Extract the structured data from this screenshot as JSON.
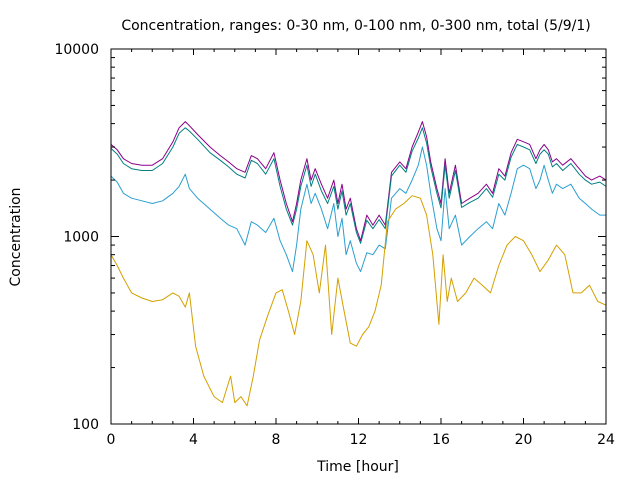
{
  "chart_data": {
    "type": "line",
    "title": "Concentration, ranges: 0-30 nm, 0-100 nm, 0-300 nm, total (5/9/1)",
    "xlabel": "Time [hour]",
    "ylabel": "Concentration",
    "xlim": [
      0,
      24
    ],
    "ylim": [
      100,
      10000
    ],
    "yscale": "log",
    "grid": false,
    "x_ticks": [
      0,
      4,
      8,
      12,
      16,
      20,
      24
    ],
    "x_tick_labels": [
      "0",
      "4",
      "8",
      "12",
      "16",
      "20",
      "24"
    ],
    "y_ticks": [
      100,
      1000,
      10000
    ],
    "y_tick_labels": [
      "100",
      "1000",
      "10000"
    ],
    "series": [
      {
        "color": "#8b008b",
        "x": [
          0,
          0.3,
          0.6,
          1,
          1.5,
          2,
          2.5,
          3,
          3.3,
          3.6,
          3.8,
          4.2,
          4.8,
          5.3,
          5.7,
          6.1,
          6.5,
          6.8,
          7.1,
          7.5,
          7.9,
          8.2,
          8.5,
          8.8,
          9.0,
          9.2,
          9.5,
          9.7,
          9.9,
          10.2,
          10.5,
          10.8,
          11.0,
          11.2,
          11.4,
          11.6,
          11.9,
          12.1,
          12.4,
          12.7,
          13.0,
          13.3,
          13.6,
          14.0,
          14.3,
          14.6,
          14.9,
          15.1,
          15.3,
          15.5,
          15.8,
          16.0,
          16.2,
          16.4,
          16.7,
          17.0,
          17.4,
          17.8,
          18.2,
          18.5,
          18.8,
          19.1,
          19.4,
          19.7,
          20.0,
          20.3,
          20.6,
          20.8,
          21.0,
          21.2,
          21.4,
          21.6,
          21.9,
          22.3,
          22.7,
          23.0,
          23.3,
          23.7,
          24.0
        ],
        "values": [
          3100,
          2900,
          2600,
          2450,
          2400,
          2400,
          2600,
          3200,
          3800,
          4100,
          3900,
          3500,
          3000,
          2700,
          2500,
          2300,
          2200,
          2700,
          2600,
          2300,
          2800,
          2000,
          1500,
          1200,
          1500,
          2000,
          2600,
          2000,
          2300,
          1900,
          1600,
          2000,
          1500,
          1900,
          1400,
          1600,
          1100,
          950,
          1300,
          1150,
          1300,
          1150,
          2200,
          2500,
          2300,
          3000,
          3600,
          4100,
          3400,
          2500,
          1800,
          1500,
          2600,
          1700,
          2400,
          1500,
          1600,
          1700,
          1900,
          1700,
          2300,
          2100,
          2800,
          3300,
          3200,
          3100,
          2600,
          2900,
          3100,
          2900,
          2500,
          2600,
          2400,
          2600,
          2300,
          2100,
          2000,
          2100,
          2000
        ]
      },
      {
        "color": "#008080",
        "x": [
          0,
          0.3,
          0.6,
          1,
          1.5,
          2,
          2.5,
          3,
          3.3,
          3.6,
          3.8,
          4.2,
          4.8,
          5.3,
          5.7,
          6.1,
          6.5,
          6.8,
          7.1,
          7.5,
          7.9,
          8.2,
          8.5,
          8.8,
          9.0,
          9.2,
          9.5,
          9.7,
          9.9,
          10.2,
          10.5,
          10.8,
          11.0,
          11.2,
          11.4,
          11.6,
          11.9,
          12.1,
          12.4,
          12.7,
          13.0,
          13.3,
          13.6,
          14.0,
          14.3,
          14.6,
          14.9,
          15.1,
          15.3,
          15.5,
          15.8,
          16.0,
          16.2,
          16.4,
          16.7,
          17.0,
          17.4,
          17.8,
          18.2,
          18.5,
          18.8,
          19.1,
          19.4,
          19.7,
          20.0,
          20.3,
          20.6,
          20.8,
          21.0,
          21.2,
          21.4,
          21.6,
          21.9,
          22.3,
          22.7,
          23.0,
          23.3,
          23.7,
          24.0
        ],
        "values": [
          2950,
          2750,
          2450,
          2300,
          2250,
          2250,
          2450,
          3000,
          3550,
          3800,
          3650,
          3300,
          2800,
          2550,
          2350,
          2150,
          2050,
          2550,
          2450,
          2150,
          2600,
          1850,
          1400,
          1150,
          1400,
          1850,
          2400,
          1850,
          2150,
          1750,
          1500,
          1850,
          1400,
          1750,
          1300,
          1500,
          1050,
          920,
          1220,
          1100,
          1230,
          1100,
          2100,
          2400,
          2200,
          2850,
          3350,
          3800,
          3150,
          2350,
          1700,
          1420,
          2400,
          1600,
          2250,
          1430,
          1520,
          1600,
          1800,
          1620,
          2150,
          2000,
          2650,
          3100,
          3000,
          2900,
          2450,
          2750,
          2900,
          2750,
          2350,
          2450,
          2250,
          2450,
          2150,
          2000,
          1900,
          1950,
          1850
        ]
      },
      {
        "color": "#2a9fd0",
        "x": [
          0,
          0.3,
          0.6,
          1,
          1.5,
          2,
          2.5,
          3,
          3.3,
          3.6,
          3.8,
          4.2,
          4.8,
          5.3,
          5.7,
          6.1,
          6.5,
          6.8,
          7.1,
          7.5,
          7.9,
          8.2,
          8.5,
          8.8,
          9.0,
          9.2,
          9.5,
          9.7,
          9.9,
          10.2,
          10.5,
          10.8,
          11.0,
          11.2,
          11.4,
          11.6,
          11.9,
          12.1,
          12.4,
          12.7,
          13.0,
          13.3,
          13.6,
          14.0,
          14.3,
          14.6,
          14.9,
          15.1,
          15.3,
          15.5,
          15.8,
          16.0,
          16.2,
          16.4,
          16.7,
          17.0,
          17.4,
          17.8,
          18.2,
          18.5,
          18.8,
          19.1,
          19.4,
          19.7,
          20.0,
          20.3,
          20.6,
          20.8,
          21.0,
          21.2,
          21.4,
          21.6,
          21.9,
          22.3,
          22.7,
          23.0,
          23.3,
          23.7,
          24.0
        ],
        "values": [
          2100,
          1950,
          1700,
          1600,
          1550,
          1500,
          1550,
          1700,
          1850,
          2150,
          1800,
          1600,
          1400,
          1250,
          1150,
          1100,
          900,
          1200,
          1150,
          1050,
          1250,
          950,
          800,
          650,
          900,
          1400,
          1900,
          1500,
          1700,
          1400,
          1100,
          1500,
          1000,
          1250,
          800,
          950,
          720,
          650,
          820,
          800,
          900,
          860,
          1600,
          1800,
          1700,
          2000,
          2400,
          3000,
          2400,
          1700,
          1100,
          950,
          1800,
          1100,
          1300,
          900,
          1000,
          1100,
          1200,
          1100,
          1500,
          1300,
          1700,
          2300,
          2400,
          2300,
          1800,
          2000,
          2400,
          2000,
          1700,
          1900,
          1800,
          1900,
          1600,
          1500,
          1400,
          1300,
          1300
        ]
      },
      {
        "color": "#d4a000",
        "x": [
          0,
          0.3,
          0.6,
          1,
          1.5,
          2,
          2.5,
          3,
          3.3,
          3.6,
          3.8,
          4.1,
          4.5,
          5.0,
          5.4,
          5.8,
          6.0,
          6.3,
          6.6,
          6.9,
          7.2,
          7.6,
          8.0,
          8.3,
          8.6,
          8.9,
          9.2,
          9.5,
          9.8,
          10.1,
          10.4,
          10.7,
          11.0,
          11.3,
          11.6,
          11.9,
          12.2,
          12.5,
          12.8,
          13.1,
          13.4,
          13.8,
          14.2,
          14.6,
          15.0,
          15.3,
          15.6,
          15.9,
          16.1,
          16.3,
          16.5,
          16.8,
          17.2,
          17.6,
          18.0,
          18.4,
          18.8,
          19.2,
          19.6,
          20.0,
          20.4,
          20.8,
          21.2,
          21.6,
          22.0,
          22.4,
          22.8,
          23.2,
          23.6,
          24.0
        ],
        "values": [
          800,
          700,
          600,
          500,
          470,
          450,
          460,
          500,
          480,
          420,
          500,
          260,
          180,
          140,
          130,
          180,
          130,
          140,
          125,
          180,
          280,
          380,
          500,
          520,
          400,
          300,
          450,
          950,
          800,
          500,
          900,
          300,
          600,
          400,
          270,
          260,
          300,
          330,
          400,
          550,
          1200,
          1400,
          1500,
          1650,
          1600,
          1300,
          800,
          340,
          800,
          450,
          600,
          450,
          500,
          600,
          550,
          500,
          700,
          900,
          1000,
          950,
          800,
          650,
          750,
          900,
          800,
          500,
          500,
          550,
          450,
          430
        ]
      }
    ]
  }
}
